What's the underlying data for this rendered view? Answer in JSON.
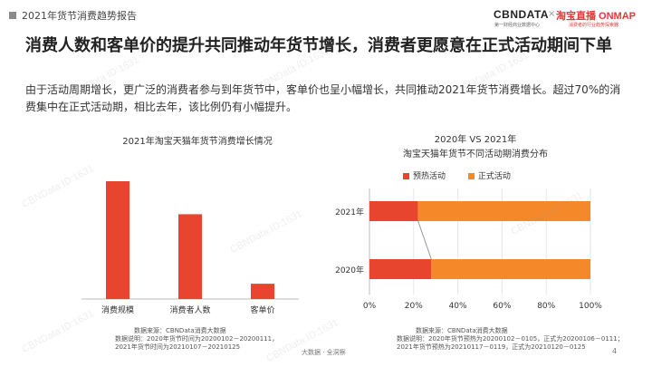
{
  "header": {
    "report_title": "2021年货节消费趋势报告",
    "logo_cbn": "CBNDATA",
    "logo_cbn_sub": "第一财经商业数据中心",
    "logo_separator": "×",
    "logo_tb": "淘宝直播 ONMAP",
    "logo_tb_sub": "消费者的行业趋势探索器"
  },
  "headline": "消费人数和客单价的提升共同推动年货节增长，消费者更愿意在正式活动期间下单",
  "intro": "由于活动周期增长，更广泛的消费者参与到年货节中，客单价也呈小幅增长，共同推动2021年货节消费增长。超过70%的消费集中在正式活动期，相比去年，该比例仍有小幅提升。",
  "watermark": "CBNData ID:1631",
  "chart_data": [
    {
      "type": "bar",
      "title": "2021年淘宝天猫年货节消费增长情况",
      "categories": [
        "消费规模",
        "消费者人数",
        "客单价"
      ],
      "values": [
        100,
        72,
        13
      ],
      "ylim": [
        0,
        100
      ],
      "grid": false,
      "color": "#e8452e"
    },
    {
      "type": "bar",
      "orientation": "horizontal",
      "stacked": true,
      "title": "2020年 VS 2021年",
      "subtitle": "淘宝天猫年货节不同活动期消费分布",
      "categories": [
        "2021年",
        "2020年"
      ],
      "series": [
        {
          "name": "预热活动",
          "values": [
            22,
            28
          ],
          "color": "#e8452e"
        },
        {
          "name": "正式活动",
          "values": [
            78,
            72
          ],
          "color": "#f5892a"
        }
      ],
      "xlim": [
        0,
        100
      ],
      "xticks": [
        "0%",
        "20%",
        "40%",
        "60%",
        "80%",
        "100%"
      ],
      "legend": "top"
    }
  ],
  "sources": {
    "left": {
      "label": "数据来源：CBNData消费大数据",
      "lines": [
        "数据说明：2020年货节时间为20200102－20200111，",
        "2021年货节时间为20210107－20210125"
      ]
    },
    "right": {
      "label": "数据来源：CBNData消费大数据",
      "lines": [
        "数据说明：2020年货节预热为20200102－0105，正式为20200106－0111；",
        "2021年货节预热为20210117－0119，正式为20210120－0125"
      ]
    }
  },
  "footer": "大数据 · 全洞察",
  "page_number": "4"
}
